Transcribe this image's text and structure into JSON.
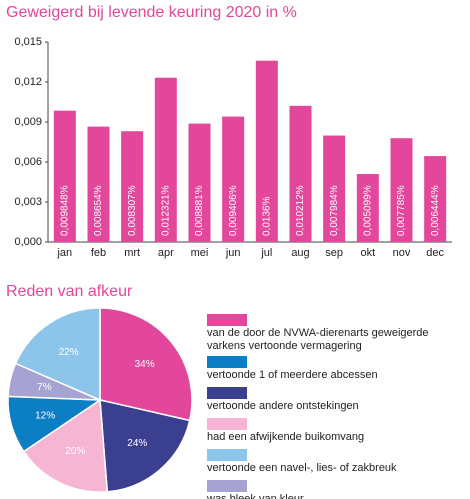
{
  "chart_data": [
    {
      "type": "bar",
      "title": "Geweigerd bij levende keuring 2020 in %",
      "categories": [
        "jan",
        "feb",
        "mrt",
        "apr",
        "mei",
        "jun",
        "jul",
        "aug",
        "sep",
        "okt",
        "nov",
        "dec"
      ],
      "values": [
        0.009848,
        0.008654,
        0.008307,
        0.012321,
        0.008881,
        0.009406,
        0.0136,
        0.010212,
        0.007984,
        0.005099,
        0.007785,
        0.006444
      ],
      "value_labels": [
        "0,009848%",
        "0,008654%",
        "0,008307%",
        "0,012321%",
        "0,008881%",
        "0,009406%",
        "0,0136%",
        "0,010212%",
        "0,007984%",
        "0,005099%",
        "0,007785%",
        "0,006444%"
      ],
      "color": "#e2479b",
      "ylim": [
        0,
        0.015
      ],
      "yticks": [
        {
          "value": 0,
          "label": "0,000"
        },
        {
          "value": 0.003,
          "label": "0,003"
        },
        {
          "value": 0.006,
          "label": "0,006"
        },
        {
          "value": 0.009,
          "label": "0,009"
        },
        {
          "value": 0.012,
          "label": "0,012"
        },
        {
          "value": 0.015,
          "label": "0,015"
        }
      ]
    },
    {
      "type": "pie",
      "title": "Reden van afkeur",
      "categories": [
        "van de door de NVWA-dierenarts geweigerde varkens vertoonde vermagering",
        "vertoonde andere ontstekingen",
        "had een afwijkende buikomvang",
        "vertoonde 1 of meerdere abcessen",
        "was bleek van kleur",
        "vertoonde een navel-, lies- of zakbreuk"
      ],
      "values": [
        34,
        24,
        20,
        12,
        7,
        22
      ],
      "value_labels": [
        "34%",
        "24%",
        "20%",
        "12%",
        "7%",
        "22%"
      ],
      "colors": [
        "#e2479b",
        "#3b3f8f",
        "#f6b6d3",
        "#0c7ec4",
        "#a6a3d3",
        "#8cc4ea"
      ]
    }
  ]
}
